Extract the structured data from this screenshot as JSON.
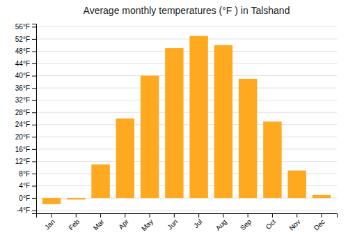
{
  "chart_data": {
    "type": "bar",
    "title": "Average monthly temperatures (°F ) in Talshand",
    "categories": [
      "Jan",
      "Feb",
      "Mar",
      "Apr",
      "May",
      "Jun",
      "Jul",
      "Aug",
      "Sep",
      "Oct",
      "Nov",
      "Dec"
    ],
    "values": [
      -2,
      -0.5,
      11,
      26,
      40,
      49,
      53,
      50,
      39,
      25,
      9,
      1
    ],
    "color": "#FFA920",
    "ylim": [
      -5,
      57
    ],
    "yticks": [
      {
        "value": -4,
        "label": "-4°F"
      },
      {
        "value": 0,
        "label": "0°F"
      },
      {
        "value": 4,
        "label": "4°F"
      },
      {
        "value": 8,
        "label": "8°F"
      },
      {
        "value": 12,
        "label": "12°F"
      },
      {
        "value": 16,
        "label": "16°F"
      },
      {
        "value": 20,
        "label": "20°F"
      },
      {
        "value": 24,
        "label": "24°F"
      },
      {
        "value": 28,
        "label": "28°F"
      },
      {
        "value": 32,
        "label": "32°F"
      },
      {
        "value": 36,
        "label": "36°F"
      },
      {
        "value": 40,
        "label": "40°F"
      },
      {
        "value": 44,
        "label": "44°F"
      },
      {
        "value": 48,
        "label": "48°F"
      },
      {
        "value": 52,
        "label": "52°F"
      },
      {
        "value": 56,
        "label": "56°F"
      }
    ],
    "grid": true
  }
}
